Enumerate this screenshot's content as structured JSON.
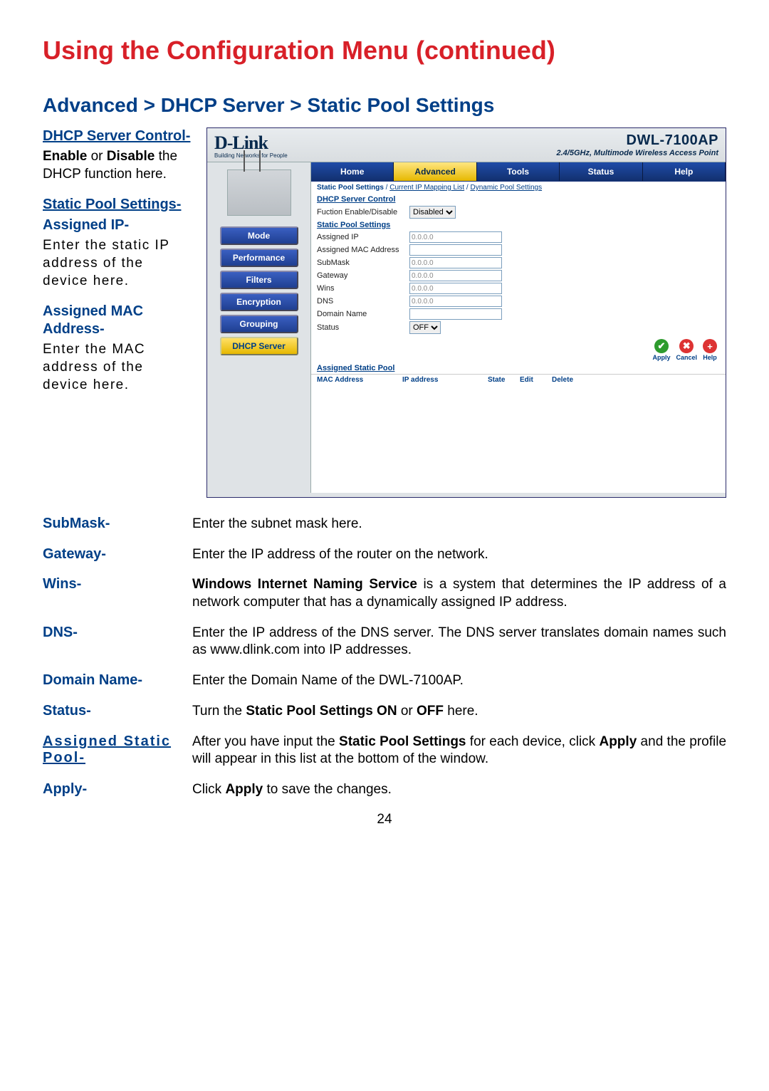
{
  "page_title": "Using the Configuration Menu (continued)",
  "breadcrumb": "Advanced > DHCP Server > Static Pool Settings",
  "left": {
    "dhcp_head": "DHCP Server Control-",
    "dhcp_desc_pre": "Enable",
    "dhcp_desc_mid": " or ",
    "dhcp_desc_bold2": "Disable",
    "dhcp_desc_post": " the DHCP function here.",
    "static_head": "Static Pool Settings-",
    "assigned_ip_head": "Assigned IP-",
    "assigned_ip_desc": "Enter the static IP address of the device here.",
    "assigned_mac_head": "Assigned MAC Address-",
    "assigned_mac_desc": "Enter the MAC address of the device here."
  },
  "screenshot": {
    "brand": "D-Link",
    "brand_tag": "Building Networks for People",
    "model": "DWL-7100AP",
    "model_sub": "2.4/5GHz, Multimode Wireless Access Point",
    "nav": {
      "items": [
        "Mode",
        "Performance",
        "Filters",
        "Encryption",
        "Grouping",
        "DHCP Server"
      ],
      "active_index": 5
    },
    "tabs": {
      "items": [
        "Home",
        "Advanced",
        "Tools",
        "Status",
        "Help"
      ],
      "active_index": 1
    },
    "sublinks": {
      "current": "Static Pool Settings",
      "sep": " / ",
      "link1": "Current IP Mapping List",
      "link2": "Dynamic Pool Settings"
    },
    "sections": {
      "dhcp_control": "DHCP Server Control",
      "enable_label": "Fuction Enable/Disable",
      "enable_value": "Disabled",
      "static_pool": "Static Pool Settings",
      "rows": [
        {
          "label": "Assigned IP",
          "value": "0.0.0.0"
        },
        {
          "label": "Assigned MAC Address",
          "value": ""
        },
        {
          "label": "SubMask",
          "value": "0.0.0.0"
        },
        {
          "label": "Gateway",
          "value": "0.0.0.0"
        },
        {
          "label": "Wins",
          "value": "0.0.0.0"
        },
        {
          "label": "DNS",
          "value": "0.0.0.0"
        },
        {
          "label": "Domain Name",
          "value": ""
        }
      ],
      "status_label": "Status",
      "status_value": "OFF",
      "actions": {
        "apply": "Apply",
        "cancel": "Cancel",
        "help": "Help"
      },
      "assigned_pool_title": "Assigned Static Pool",
      "pool_cols": [
        "MAC Address",
        "IP address",
        "State",
        "Edit",
        "Delete"
      ]
    }
  },
  "desc": {
    "submask": {
      "term": "SubMask-",
      "text": "Enter the subnet mask  here."
    },
    "gateway": {
      "term": "Gateway-",
      "text": "Enter the IP address of the router on the network."
    },
    "wins": {
      "term": "Wins-",
      "bold": "Windows Internet Naming Service",
      "text": " is a system that determines the IP address of a network computer that has a dynamically assigned IP address."
    },
    "dns": {
      "term": "DNS-",
      "text": "Enter the IP address of the DNS server. The DNS server translates domain names such as www.dlink.com into IP addresses."
    },
    "domain": {
      "term": "Domain Name-",
      "text": "Enter the Domain Name of the DWL-7100AP."
    },
    "status": {
      "term": "Status-",
      "pre": "Turn the ",
      "bold": "Static Pool Settings ON",
      "mid": " or ",
      "bold2": "OFF",
      "post": " here."
    },
    "assigned_static": {
      "term": "Assigned Static Pool-",
      "pre": "After you have input the ",
      "bold": "Static Pool Settings",
      "mid": " for each device, click ",
      "bold2": "Apply",
      "post": " and the profile will appear in this list at the bottom of the window."
    },
    "apply": {
      "term": "Apply-",
      "pre": "Click ",
      "bold": "Apply",
      "post": " to save the changes."
    }
  },
  "page_number": "24",
  "colors": {
    "title_red": "#d82028",
    "blue": "#003f87",
    "panel_bg": "#dfe3e6"
  }
}
